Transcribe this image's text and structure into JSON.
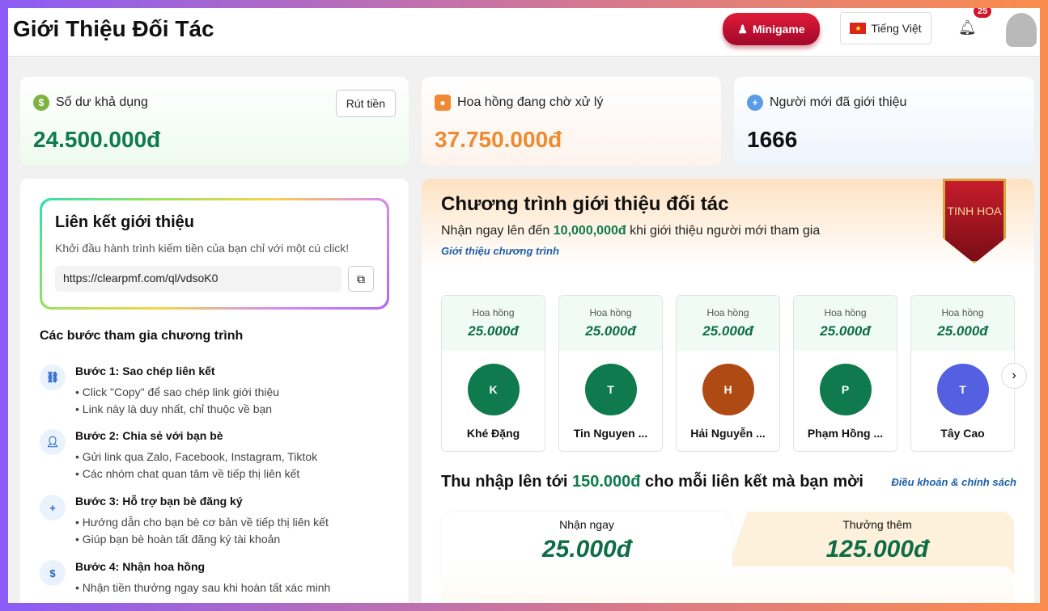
{
  "header": {
    "title": "Giới Thiệu Đối Tác",
    "minigame": "Minigame",
    "language": "Tiếng Việt",
    "notifications": "25"
  },
  "cards": [
    {
      "label": "Số dư khả dụng",
      "value": "24.500.000đ",
      "button": "Rút tiền",
      "color": "#0e7a4e"
    },
    {
      "label": "Hoa hồng đang chờ xử lý",
      "value": "37.750.000đ",
      "color": "#f08a30"
    },
    {
      "label": "Người mới đã giới thiệu",
      "value": "1666",
      "color": "#111111"
    }
  ],
  "referral": {
    "title": "Liên kết giới thiệu",
    "subtitle": "Khởi đầu hành trình kiếm tiền của bạn chỉ với một cú click!",
    "url": "https://clearpmf.com/ql/vdsoK0"
  },
  "steps_title": "Các bước tham gia chương trình",
  "steps": [
    {
      "title": "Bước 1: Sao chép liên kết",
      "items": [
        "Click \"Copy\" để sao chép link giới thiệu",
        "Link này là duy nhất, chỉ thuộc về bạn"
      ]
    },
    {
      "title": "Bước 2: Chia sẻ với bạn bè",
      "items": [
        "Gửi link qua Zalo, Facebook, Instagram, Tiktok",
        "Các nhóm chat quan tâm về tiếp thị liên kết"
      ]
    },
    {
      "title": "Bước 3: Hỗ trợ bạn bè đăng ký",
      "items": [
        "Hướng dẫn cho bạn bè cơ bản về tiếp thị liên kết",
        "Giúp bạn bè hoàn tất đăng ký tài khoản"
      ]
    },
    {
      "title": "Bước 4: Nhận hoa hồng",
      "items": [
        "Nhận tiền thưởng ngay sau khi hoàn tất xác minh"
      ]
    }
  ],
  "program": {
    "title": "Chương trình giới thiệu đối tác",
    "desc_pre": "Nhận ngay lên đến ",
    "desc_amount": "10,000,000đ",
    "desc_post": " khi giới thiệu người mới tham gia",
    "intro_link": "Giới thiệu chương trình",
    "ribbon": "TINH HOA"
  },
  "people": [
    {
      "label": "Hoa hồng",
      "amount": "25.000đ",
      "initial": "K",
      "name": "Khé Đặng",
      "color": "#0e7a4e"
    },
    {
      "label": "Hoa hồng",
      "amount": "25.000đ",
      "initial": "T",
      "name": "Tin Nguyen ...",
      "color": "#0e7a4e"
    },
    {
      "label": "Hoa hồng",
      "amount": "25.000đ",
      "initial": "H",
      "name": "Hải Nguyễn ...",
      "color": "#b04a14"
    },
    {
      "label": "Hoa hồng",
      "amount": "25.000đ",
      "initial": "P",
      "name": "Phạm Hồng ...",
      "color": "#0e7a4e"
    },
    {
      "label": "Hoa hồng",
      "amount": "25.000đ",
      "initial": "T",
      "name": "Tây Cao",
      "color": "#5560e0"
    }
  ],
  "income": {
    "pre": "Thu nhập lên tới ",
    "amount": "150.000đ",
    "post": " cho mỗi liên kết mà bạn mời",
    "terms": "Điều khoản & chính sách",
    "tabs": [
      {
        "label": "Nhận ngay",
        "value": "25.000đ"
      },
      {
        "label": "Thưởng thêm",
        "value": "125.000đ"
      }
    ]
  }
}
